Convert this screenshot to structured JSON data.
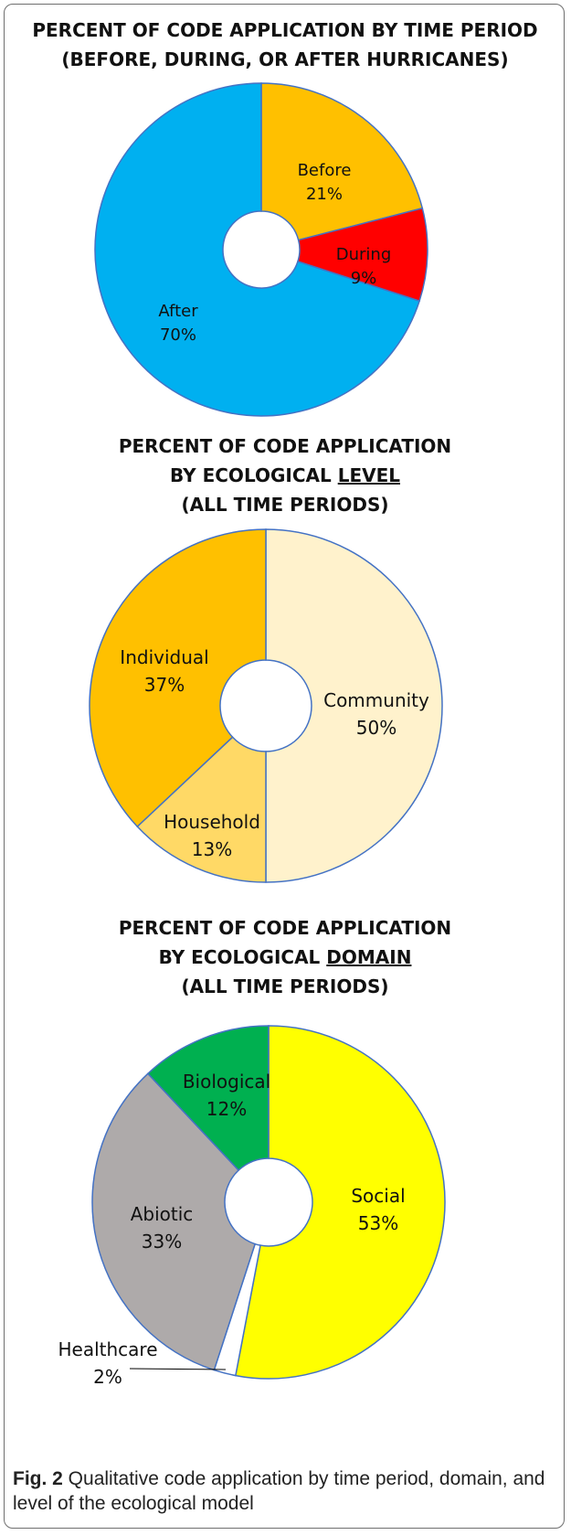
{
  "chart_data": [
    {
      "type": "pie",
      "style": "donut",
      "title": [
        "PERCENT OF CODE APPLICATION BY TIME PERIOD",
        "(BEFORE, DURING, OR AFTER HURRICANES)"
      ],
      "categories": [
        "Before",
        "During",
        "After"
      ],
      "values": [
        21,
        9,
        70
      ],
      "labels": [
        "21%",
        "9%",
        "70%"
      ],
      "colors": [
        "#FFC000",
        "#FF0000",
        "#00B0F0"
      ]
    },
    {
      "type": "pie",
      "style": "donut",
      "title": [
        "PERCENT OF CODE APPLICATION",
        "BY ECOLOGICAL LEVEL",
        "(ALL TIME PERIODS)"
      ],
      "title_underline": "LEVEL",
      "categories": [
        "Community",
        "Household",
        "Individual"
      ],
      "values": [
        50,
        13,
        37
      ],
      "labels": [
        "50%",
        "13%",
        "37%"
      ],
      "colors": [
        "#FFF2CC",
        "#FFD966",
        "#FFC000"
      ]
    },
    {
      "type": "pie",
      "style": "donut",
      "title": [
        "PERCENT OF CODE APPLICATION",
        "BY ECOLOGICAL DOMAIN",
        "(ALL TIME PERIODS)"
      ],
      "title_underline": "DOMAIN",
      "categories": [
        "Social",
        "Healthcare",
        "Abiotic",
        "Biological"
      ],
      "values": [
        53,
        2,
        33,
        12
      ],
      "labels": [
        "53%",
        "2%",
        "33%",
        "12%"
      ],
      "colors": [
        "#FFFF00",
        "#FFFFFF",
        "#AEAAAA",
        "#00B050"
      ]
    }
  ],
  "caption": {
    "label": "Fig. 2",
    "text": " Qualitative code application by time period, domain, and level of the ecological model"
  }
}
